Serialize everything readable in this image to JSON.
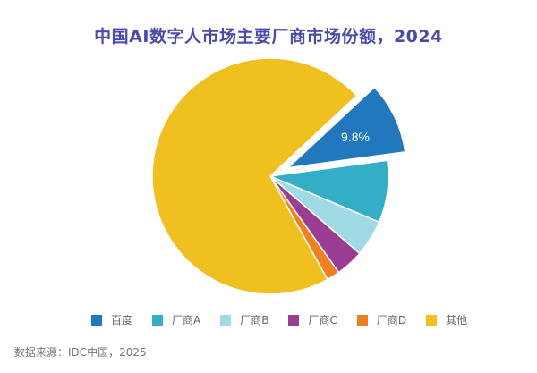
{
  "chart_data": {
    "type": "pie",
    "title": "中国AI数字人市场主要厂商市场份额，2024",
    "categories": [
      "百度",
      "厂商A",
      "厂商B",
      "厂商C",
      "厂商D",
      "其他"
    ],
    "values": [
      9.8,
      8.5,
      5.0,
      3.8,
      1.8,
      71.1
    ],
    "value_notes": "Only 9.8% (百度) is labeled; other values estimated from slice angles",
    "data_labels": [
      {
        "category": "百度",
        "text": "9.8%"
      }
    ],
    "exploded": [
      "百度"
    ],
    "colors": [
      "#2178bd",
      "#33aec6",
      "#9fdae5",
      "#9b3d92",
      "#f07f22",
      "#f0c020"
    ],
    "legend_position": "bottom",
    "source": "数据来源：IDC中国，2025"
  },
  "title": "中国AI数字人市场主要厂商市场份额，2024",
  "label_baidu": "9.8%",
  "legend": [
    {
      "label": "百度",
      "color": "#2178bd"
    },
    {
      "label": "厂商A",
      "color": "#33aec6"
    },
    {
      "label": "厂商B",
      "color": "#9fdae5"
    },
    {
      "label": "厂商C",
      "color": "#9b3d92"
    },
    {
      "label": "厂商D",
      "color": "#f07f22"
    },
    {
      "label": "其他",
      "color": "#f0c020"
    }
  ],
  "source": "数据来源：IDC中国，2025"
}
